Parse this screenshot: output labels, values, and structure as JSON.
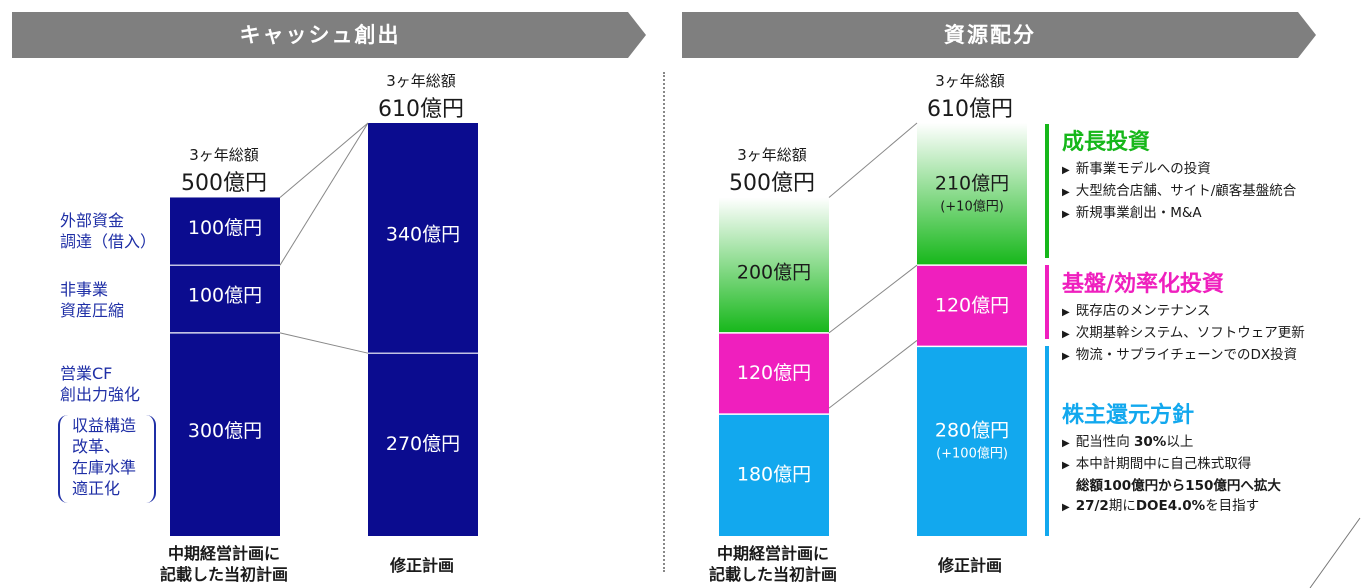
{
  "banners": {
    "left": "キャッシュ創出",
    "right": "資源配分"
  },
  "colors": {
    "banner": "#7f7f7f",
    "navy": "#0b0c8f",
    "green": "#16b71a",
    "magenta": "#ef1fbe",
    "cyan": "#12a8ee",
    "label_blue": "#1f2fa6"
  },
  "left": {
    "totals": [
      {
        "sub": "3ヶ年総額",
        "main": "500億円"
      },
      {
        "sub": "3ヶ年総額",
        "main": "610億円"
      }
    ],
    "side_labels": {
      "external_1": "外部資金",
      "external_2": "調達（借入）",
      "nonbiz_1": "非事業",
      "nonbiz_2": "資産圧縮",
      "opcf_1": "営業CF",
      "opcf_2": "創出力強化",
      "bracket_1": "収益構造",
      "bracket_2": "改革、",
      "bracket_3": "在庫水準",
      "bracket_4": "適正化"
    },
    "categories": {
      "initial_1": "中期経営計画に",
      "initial_2": "記載した当初計画",
      "revised": "修正計画"
    }
  },
  "right": {
    "totals": [
      {
        "sub": "3ヶ年総額",
        "main": "500億円"
      },
      {
        "sub": "3ヶ年総額",
        "main": "610億円"
      }
    ],
    "categories": {
      "initial_1": "中期経営計画に",
      "initial_2": "記載した当初計画",
      "revised": "修正計画"
    },
    "growth": {
      "heading": "成長投資",
      "items": [
        "新事業モデルへの投資",
        "大型統合店舗、サイト/顧客基盤統合",
        "新規事業創出・M&A"
      ]
    },
    "base": {
      "heading": "基盤/効率化投資",
      "items": [
        "既存店のメンテナンス",
        "次期基幹システム、ソフトウェア更新",
        "物流・サプライチェーンでのDX投資"
      ]
    },
    "shareholder": {
      "heading": "株主還元方針",
      "item1_a": "配当性向 ",
      "item1_b": "30%",
      "item1_c": "以上",
      "item2": "本中計期間中に自己株式取得",
      "item2_bold": "総額100億円から150億円へ拡大",
      "item3_a": "27/2",
      "item3_b": "期に",
      "item3_c": "DOE4.0%",
      "item3_d": "を目指す"
    }
  },
  "chart_data": [
    {
      "type": "bar",
      "title": "キャッシュ創出",
      "stacked": true,
      "categories": [
        "中期経営計画に記載した当初計画",
        "修正計画"
      ],
      "unit": "億円",
      "series": [
        {
          "name": "営業CF 創出力強化",
          "values": [
            300,
            270
          ],
          "labels": [
            "300億円",
            "270億円"
          ]
        },
        {
          "name": "非事業 資産圧縮",
          "values": [
            100,
            null
          ],
          "labels": [
            "100億円",
            ""
          ]
        },
        {
          "name": "外部資金 調達（借入）",
          "values": [
            100,
            null
          ],
          "labels": [
            "100億円",
            ""
          ]
        },
        {
          "name": "",
          "values": [
            null,
            340
          ],
          "labels": [
            "",
            "340億円"
          ]
        }
      ],
      "totals": [
        500,
        610
      ],
      "ylim": [
        0,
        610
      ]
    },
    {
      "type": "bar",
      "title": "資源配分",
      "stacked": true,
      "categories": [
        "中期経営計画に記載した当初計画",
        "修正計画"
      ],
      "unit": "億円",
      "series": [
        {
          "name": "株主還元方針",
          "values": [
            180,
            280
          ],
          "labels": [
            "180億円",
            "280億円"
          ],
          "change": [
            "",
            "(+100億円)"
          ]
        },
        {
          "name": "基盤/効率化投資",
          "values": [
            120,
            120
          ],
          "labels": [
            "120億円",
            "120億円"
          ],
          "change": [
            "",
            ""
          ]
        },
        {
          "name": "成長投資",
          "values": [
            200,
            210
          ],
          "labels": [
            "200億円",
            "210億円"
          ],
          "change": [
            "",
            "(+10億円)"
          ]
        }
      ],
      "totals": [
        500,
        610
      ],
      "ylim": [
        0,
        610
      ]
    }
  ]
}
